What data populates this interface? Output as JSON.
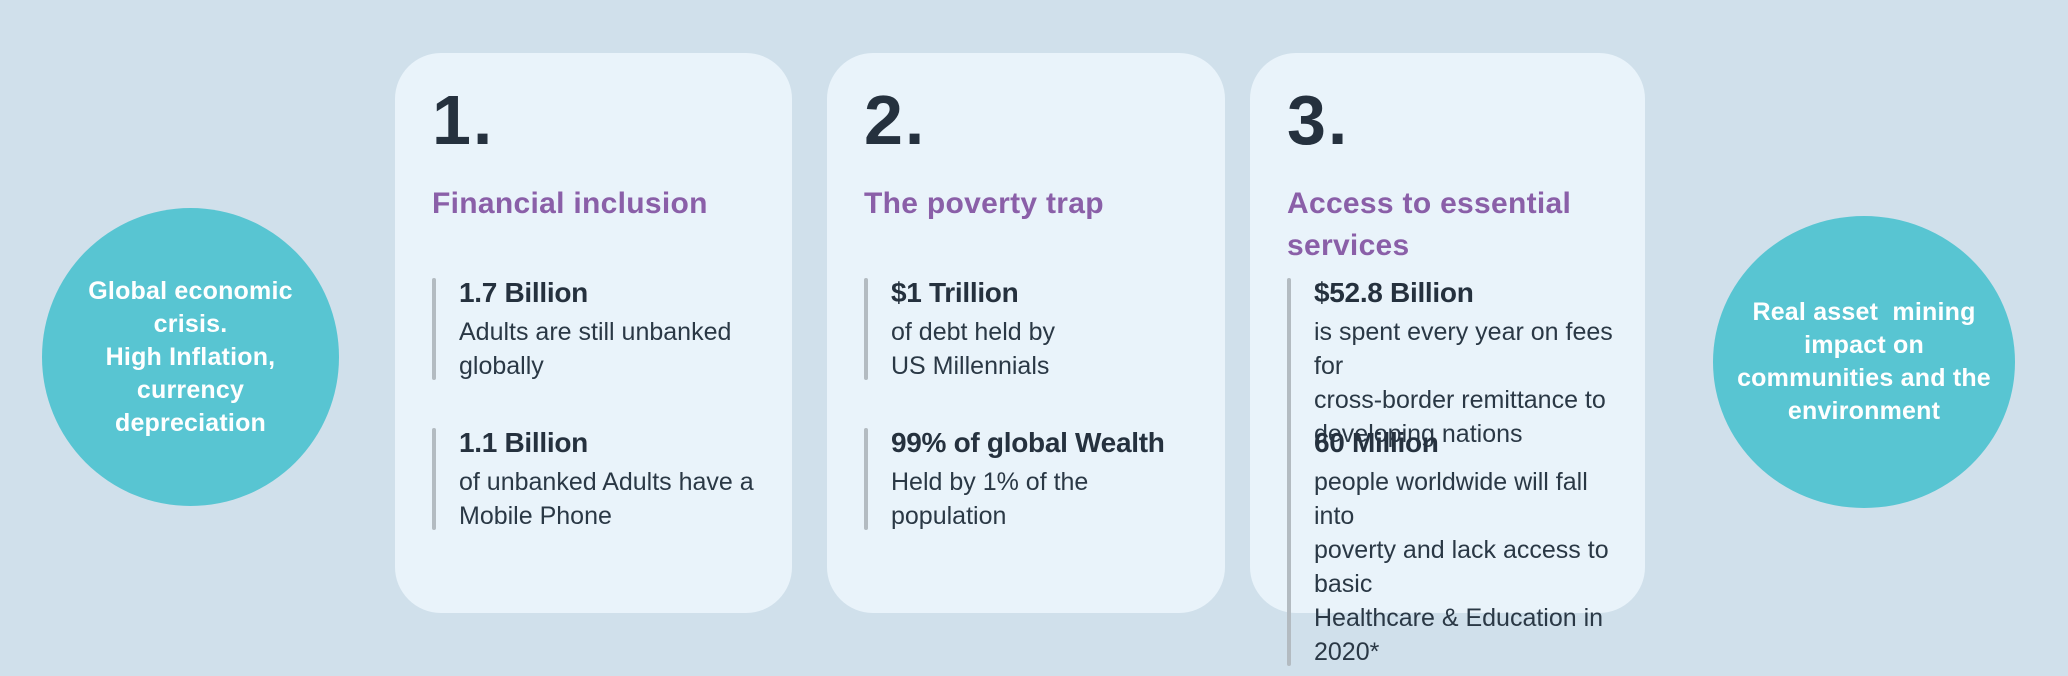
{
  "slide": {
    "background_color": "#d0e0eb",
    "card_color": "#e9f3fa",
    "bubble_color": "#58c5d2",
    "bubble_text_color": "#ffffff",
    "heading_color": "#8a5fa8",
    "number_color": "#25313e",
    "stat_text_color": "#25313e",
    "stat_bar_color": "#b3bbc1"
  },
  "left_bubble": {
    "text": "Global economic\ncrisis.\nHigh Inflation,\ncurrency\ndepreciation"
  },
  "right_bubble": {
    "text": "Real asset  mining\nimpact on\ncommunities and the\nenvironment"
  },
  "cards": [
    {
      "number": "1.",
      "title": "Financial inclusion",
      "stats": [
        {
          "value": "1.7 Billion",
          "description": "Adults are still unbanked\nglobally"
        },
        {
          "value": "1.1 Billion",
          "description": "of unbanked Adults have a\nMobile Phone"
        }
      ]
    },
    {
      "number": "2.",
      "title": "The poverty trap",
      "stats": [
        {
          "value": "$1 Trillion",
          "description": "of debt held by\nUS Millennials"
        },
        {
          "value": "99% of global Wealth",
          "description": "Held by 1% of the\npopulation"
        }
      ]
    },
    {
      "number": "3.",
      "title": "Access to essential\nservices",
      "stats": [
        {
          "value": "$52.8 Billion",
          "description": "is spent every year on fees for\ncross-border remittance to\ndeveloping nations"
        },
        {
          "value": "60 Million",
          "description": "people worldwide will fall into\npoverty and lack access to basic\nHealthcare & Education in 2020*"
        }
      ]
    }
  ]
}
